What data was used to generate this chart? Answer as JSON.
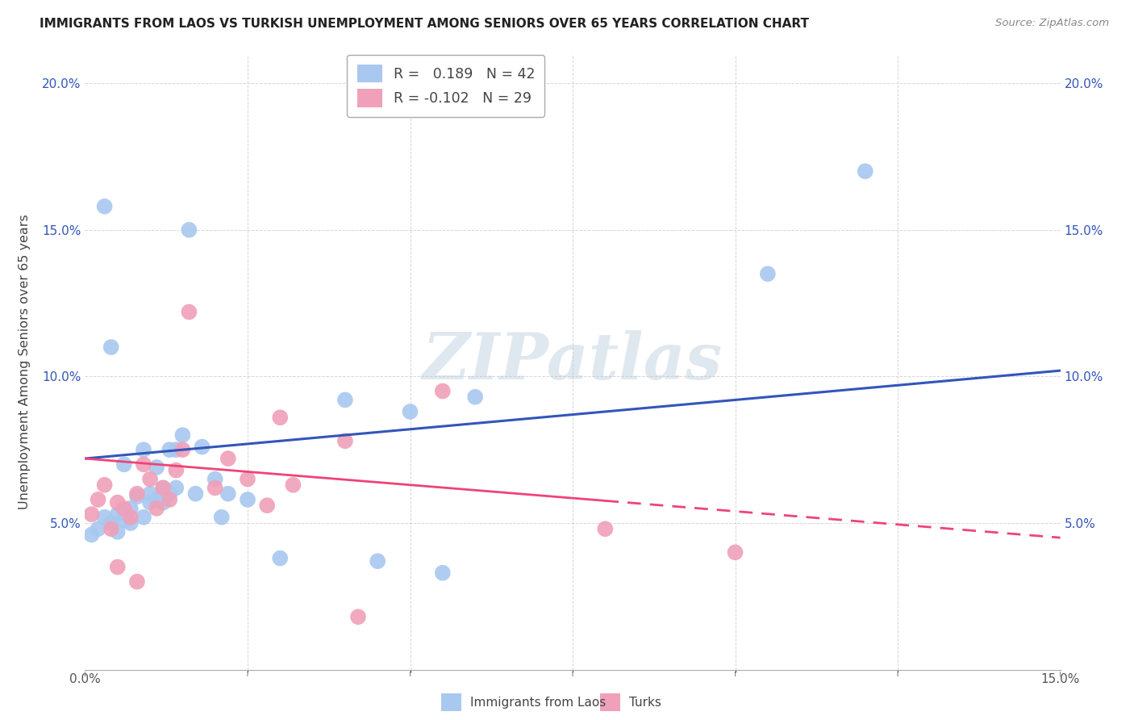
{
  "title": "IMMIGRANTS FROM LAOS VS TURKISH UNEMPLOYMENT AMONG SENIORS OVER 65 YEARS CORRELATION CHART",
  "source": "Source: ZipAtlas.com",
  "ylabel_label": "Unemployment Among Seniors over 65 years",
  "legend_label1": "Immigrants from Laos",
  "legend_label2": "Turks",
  "r1": 0.189,
  "n1": 42,
  "r2": -0.102,
  "n2": 29,
  "xlim": [
    0.0,
    0.15
  ],
  "ylim": [
    0.0,
    0.21
  ],
  "xtick_positions": [
    0.0,
    0.15
  ],
  "xtick_labels": [
    "0.0%",
    "15.0%"
  ],
  "ytick_positions": [
    0.0,
    0.05,
    0.1,
    0.15,
    0.2
  ],
  "ytick_labels": [
    "",
    "5.0%",
    "10.0%",
    "15.0%",
    "20.0%"
  ],
  "color_blue": "#A8C8F0",
  "color_pink": "#F0A0B8",
  "color_blue_line": "#3355BB",
  "color_pink_line": "#EE4477",
  "watermark_text": "ZIPatlas",
  "blue_line_y0": 0.072,
  "blue_line_y1": 0.102,
  "pink_line_y0": 0.072,
  "pink_line_y1": 0.045,
  "blue_x": [
    0.001,
    0.002,
    0.003,
    0.004,
    0.005,
    0.005,
    0.006,
    0.006,
    0.007,
    0.007,
    0.008,
    0.009,
    0.009,
    0.01,
    0.01,
    0.011,
    0.011,
    0.012,
    0.012,
    0.013,
    0.013,
    0.014,
    0.014,
    0.015,
    0.016,
    0.017,
    0.018,
    0.02,
    0.021,
    0.022,
    0.025,
    0.03,
    0.04,
    0.045,
    0.055,
    0.06,
    0.105,
    0.12,
    0.003,
    0.004,
    0.006,
    0.05
  ],
  "blue_y": [
    0.046,
    0.048,
    0.052,
    0.05,
    0.053,
    0.047,
    0.051,
    0.054,
    0.05,
    0.055,
    0.059,
    0.052,
    0.075,
    0.057,
    0.06,
    0.069,
    0.058,
    0.057,
    0.062,
    0.06,
    0.075,
    0.062,
    0.075,
    0.08,
    0.15,
    0.06,
    0.076,
    0.065,
    0.052,
    0.06,
    0.058,
    0.038,
    0.092,
    0.037,
    0.033,
    0.093,
    0.135,
    0.17,
    0.158,
    0.11,
    0.07,
    0.088
  ],
  "pink_x": [
    0.001,
    0.002,
    0.003,
    0.004,
    0.005,
    0.006,
    0.007,
    0.008,
    0.009,
    0.01,
    0.011,
    0.012,
    0.013,
    0.014,
    0.015,
    0.016,
    0.02,
    0.022,
    0.025,
    0.028,
    0.03,
    0.032,
    0.04,
    0.042,
    0.055,
    0.08,
    0.1,
    0.005,
    0.008
  ],
  "pink_y": [
    0.053,
    0.058,
    0.063,
    0.048,
    0.057,
    0.055,
    0.052,
    0.06,
    0.07,
    0.065,
    0.055,
    0.062,
    0.058,
    0.068,
    0.075,
    0.122,
    0.062,
    0.072,
    0.065,
    0.056,
    0.086,
    0.063,
    0.078,
    0.018,
    0.095,
    0.048,
    0.04,
    0.035,
    0.03
  ]
}
